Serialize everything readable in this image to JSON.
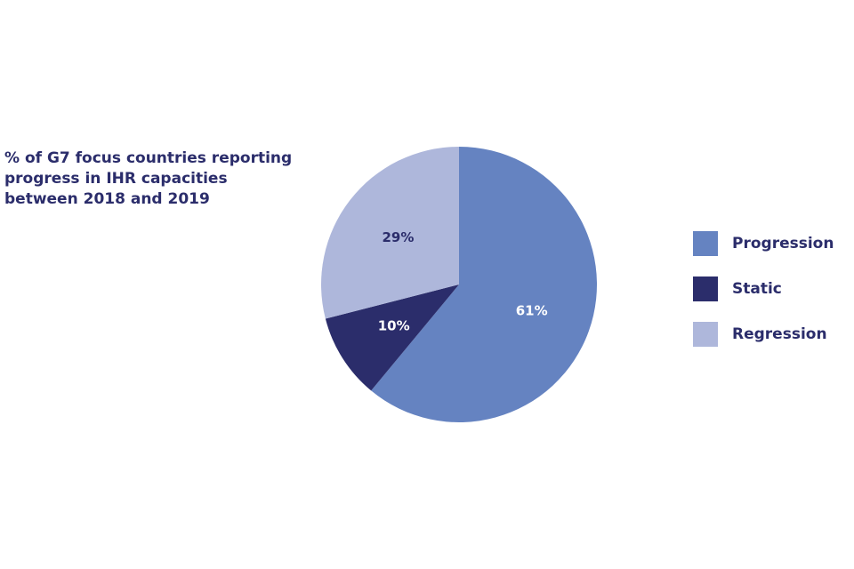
{
  "chart_data": {
    "type": "pie",
    "title": "% of G7 focus countries reporting progress in IHR capacities between 2018 and 2019",
    "title_lines": [
      "% of G7 focus countries reporting",
      "progress in IHR capacities",
      "between 2018 and 2019"
    ],
    "legend_position": "right",
    "slices": [
      {
        "name": "Progression",
        "value": 61,
        "label": "61%",
        "color": "#6583c1",
        "label_color": "#ffffff"
      },
      {
        "name": "Static",
        "value": 10,
        "label": "10%",
        "color": "#2b2d6b",
        "label_color": "#ffffff"
      },
      {
        "name": "Regression",
        "value": 29,
        "label": "29%",
        "color": "#aeb7db",
        "label_color": "#2b2d6b"
      }
    ]
  }
}
